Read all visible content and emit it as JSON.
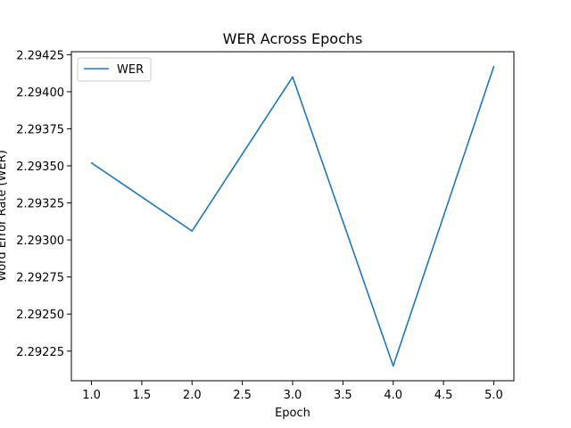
{
  "chart_data": {
    "type": "line",
    "title": "WER Across Epochs",
    "xlabel": "Epoch",
    "ylabel": "Word Error Rate (WER)",
    "x": [
      1.0,
      2.0,
      3.0,
      4.0,
      5.0
    ],
    "series": [
      {
        "name": "WER",
        "color": "#1f77b4",
        "values": [
          2.29352,
          2.29306,
          2.2941,
          2.29215,
          2.29417
        ]
      }
    ],
    "xlim": [
      0.8,
      5.2
    ],
    "ylim": [
      2.29205,
      2.29427
    ],
    "xticks": [
      "1.0",
      "1.5",
      "2.0",
      "2.5",
      "3.0",
      "3.5",
      "4.0",
      "4.5",
      "5.0"
    ],
    "yticks": [
      "2.29225",
      "2.29250",
      "2.29275",
      "2.29300",
      "2.29325",
      "2.29350",
      "2.29375",
      "2.29400",
      "2.29425"
    ],
    "legend": {
      "placement": "top-left",
      "entries": [
        "WER"
      ]
    },
    "grid": false
  }
}
